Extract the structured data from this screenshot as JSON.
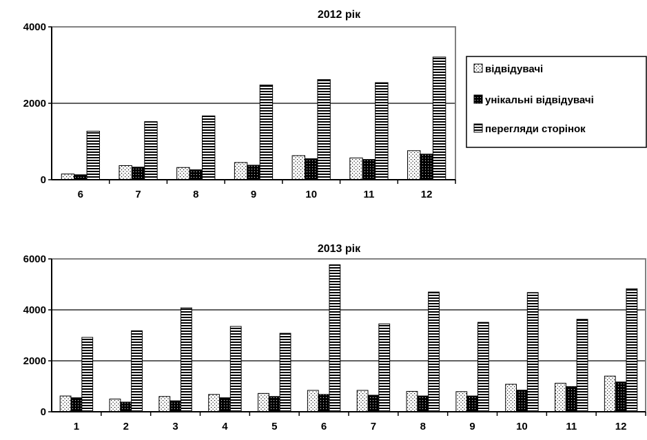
{
  "chart_data": [
    {
      "type": "bar",
      "title": "2012 рік",
      "categories": [
        "6",
        "7",
        "8",
        "9",
        "10",
        "11",
        "12"
      ],
      "ylim": [
        0,
        4000
      ],
      "yticks": [
        0,
        2000,
        4000
      ],
      "grid": true,
      "legend_position": "right",
      "series": [
        {
          "name": "відвідувачі",
          "values": [
            150,
            370,
            320,
            450,
            630,
            570,
            760
          ]
        },
        {
          "name": "унікальні відвідувачі",
          "values": [
            130,
            330,
            260,
            380,
            550,
            530,
            670
          ]
        },
        {
          "name": "перегляди сторінок",
          "values": [
            1270,
            1520,
            1670,
            2480,
            2620,
            2540,
            3210
          ]
        }
      ]
    },
    {
      "type": "bar",
      "title": "2013 рік",
      "categories": [
        "1",
        "2",
        "3",
        "4",
        "5",
        "6",
        "7",
        "8",
        "9",
        "10",
        "11",
        "12"
      ],
      "ylim": [
        0,
        6000
      ],
      "yticks": [
        0,
        2000,
        4000,
        6000
      ],
      "grid": true,
      "series": [
        {
          "name": "відвідувачі",
          "values": [
            620,
            500,
            600,
            680,
            720,
            840,
            840,
            800,
            790,
            1080,
            1120,
            1400
          ]
        },
        {
          "name": "унікальні відвідувачі",
          "values": [
            550,
            380,
            430,
            550,
            600,
            680,
            650,
            620,
            620,
            850,
            990,
            1170
          ]
        },
        {
          "name": "перегляди сторінок",
          "values": [
            2920,
            3180,
            4080,
            3350,
            3080,
            5770,
            3450,
            4700,
            3510,
            4680,
            3630,
            4830
          ]
        }
      ]
    }
  ],
  "colors": {
    "visitors_fill": "#ffffff",
    "unique_fill": "#000000",
    "pageviews_fill": "#ffffff",
    "frame": "#808080",
    "grid": "#000000"
  }
}
